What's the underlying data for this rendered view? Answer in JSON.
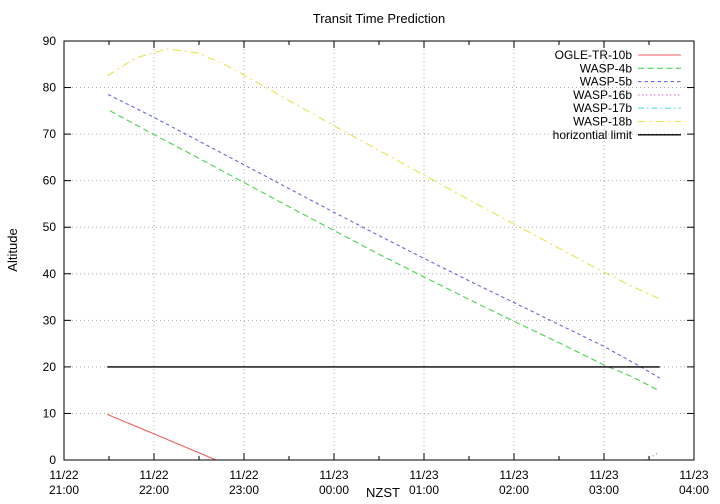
{
  "window": {
    "background": "#ffffff"
  },
  "chart_data": {
    "type": "line",
    "title": "Transit Time Prediction",
    "xlabel": "NZST",
    "ylabel": "Altitude",
    "x_unit": "hours after 11/22 21:00 NZST",
    "xlim": [
      0,
      7
    ],
    "ylim": [
      0,
      90
    ],
    "grid": true,
    "legend_position": "top-right-inside",
    "x_ticks": [
      {
        "date": "11/22",
        "time": "21:00"
      },
      {
        "date": "11/22",
        "time": "22:00"
      },
      {
        "date": "11/22",
        "time": "23:00"
      },
      {
        "date": "11/23",
        "time": "00:00"
      },
      {
        "date": "11/23",
        "time": "01:00"
      },
      {
        "date": "11/23",
        "time": "02:00"
      },
      {
        "date": "11/23",
        "time": "03:00"
      },
      {
        "date": "11/23",
        "time": "04:00"
      }
    ],
    "x_minor_tick_interval_hours": 0.5,
    "y_ticks": [
      0,
      10,
      20,
      30,
      40,
      50,
      60,
      70,
      80,
      90
    ],
    "series": [
      {
        "name": "OGLE-TR-10b",
        "color": "#f25f5f",
        "dash": "solid",
        "points": [
          [
            0.48,
            9.8
          ],
          [
            1.0,
            5.6
          ],
          [
            1.69,
            0
          ]
        ]
      },
      {
        "name": "WASP-4b",
        "color": "#4dd14d",
        "dash": "dash",
        "points": [
          [
            0.51,
            75
          ],
          [
            1.0,
            69.9
          ],
          [
            1.5,
            64.8
          ],
          [
            2.0,
            59.6
          ],
          [
            2.5,
            54.4
          ],
          [
            3.0,
            49.3
          ],
          [
            3.5,
            44.2
          ],
          [
            4.0,
            39.3
          ],
          [
            4.5,
            34.5
          ],
          [
            5.0,
            29.8
          ],
          [
            5.5,
            25.2
          ],
          [
            6.0,
            20.4
          ],
          [
            6.3,
            18.0
          ],
          [
            6.62,
            14.8
          ]
        ]
      },
      {
        "name": "WASP-5b",
        "color": "#6565e8",
        "dash": "short-dash",
        "points": [
          [
            0.49,
            78.5
          ],
          [
            1.0,
            73.6
          ],
          [
            1.5,
            68.5
          ],
          [
            2.0,
            63.4
          ],
          [
            2.5,
            58.3
          ],
          [
            3.0,
            53.2
          ],
          [
            3.5,
            48.2
          ],
          [
            4.0,
            43.3
          ],
          [
            4.5,
            38.5
          ],
          [
            5.0,
            33.8
          ],
          [
            5.5,
            29.1
          ],
          [
            6.0,
            24.4
          ],
          [
            6.41,
            20.0
          ],
          [
            6.62,
            17.6
          ]
        ]
      },
      {
        "name": "WASP-16b",
        "color": "#dd74dd",
        "dash": "dot",
        "points": [
          [
            6.46,
            0
          ],
          [
            6.61,
            1.6
          ]
        ]
      },
      {
        "name": "WASP-17b",
        "color": "#5cdcdc",
        "dash": "dash-dot",
        "points": []
      },
      {
        "name": "WASP-18b",
        "color": "#e7e44e",
        "dash": "dash-dot-long",
        "points": [
          [
            0.48,
            82.5
          ],
          [
            0.8,
            86.4
          ],
          [
            1.15,
            88.3
          ],
          [
            1.5,
            87.4
          ],
          [
            1.8,
            84.8
          ],
          [
            2.1,
            81.6
          ],
          [
            2.5,
            77.2
          ],
          [
            3.0,
            71.8
          ],
          [
            3.5,
            66.5
          ],
          [
            4.0,
            61.2
          ],
          [
            4.5,
            55.9
          ],
          [
            5.0,
            50.7
          ],
          [
            5.5,
            45.5
          ],
          [
            6.0,
            40.3
          ],
          [
            6.3,
            37.4
          ],
          [
            6.62,
            34.6
          ]
        ]
      },
      {
        "name": "horizontial limit",
        "color": "#000000",
        "dash": "solid",
        "points": [
          [
            0.48,
            20
          ],
          [
            6.62,
            20
          ]
        ]
      }
    ]
  }
}
